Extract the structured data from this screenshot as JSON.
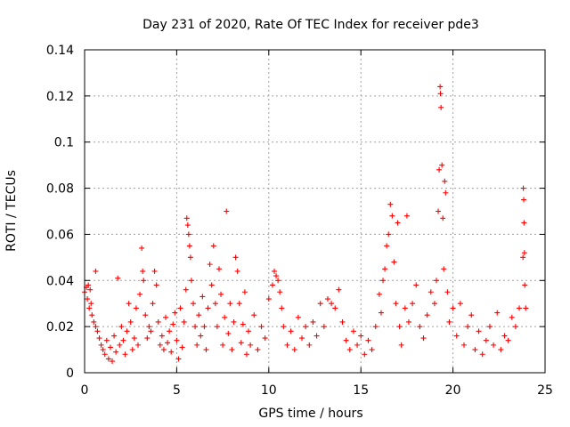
{
  "chart_data": {
    "type": "scatter",
    "title": "Day 231 of 2020, Rate Of TEC Index for receiver pde3",
    "xlabel": "GPS time / hours",
    "ylabel": "ROTI / TECUs",
    "xlim": [
      0,
      25
    ],
    "ylim": [
      0,
      0.14
    ],
    "x_ticks": [
      0,
      5,
      10,
      15,
      20,
      25
    ],
    "x_tick_labels": [
      "0",
      "5",
      "10",
      "15",
      "20",
      "25"
    ],
    "y_ticks": [
      0,
      0.02,
      0.04,
      0.06,
      0.08,
      0.1,
      0.12,
      0.14
    ],
    "y_tick_labels": [
      "0",
      "0.02",
      "0.04",
      "0.06",
      "0.08",
      "0.1",
      "0.12",
      "0.14"
    ],
    "grid": true,
    "marker": "plus",
    "color": "#ff0000",
    "series": [
      {
        "points": [
          [
            0.0,
            0.035
          ],
          [
            0.1,
            0.037
          ],
          [
            0.15,
            0.032
          ],
          [
            0.2,
            0.038
          ],
          [
            0.25,
            0.028
          ],
          [
            0.3,
            0.036
          ],
          [
            0.35,
            0.03
          ],
          [
            0.4,
            0.025
          ],
          [
            0.5,
            0.022
          ],
          [
            0.6,
            0.044
          ],
          [
            0.6,
            0.02
          ],
          [
            0.7,
            0.018
          ],
          [
            0.8,
            0.015
          ],
          [
            0.9,
            0.012
          ],
          [
            1.0,
            0.01
          ],
          [
            1.1,
            0.008
          ],
          [
            1.2,
            0.014
          ],
          [
            1.3,
            0.006
          ],
          [
            1.4,
            0.011
          ],
          [
            1.5,
            0.005
          ],
          [
            1.6,
            0.016
          ],
          [
            1.7,
            0.009
          ],
          [
            1.8,
            0.041
          ],
          [
            1.9,
            0.012
          ],
          [
            2.0,
            0.02
          ],
          [
            2.1,
            0.014
          ],
          [
            2.2,
            0.008
          ],
          [
            2.3,
            0.018
          ],
          [
            2.4,
            0.03
          ],
          [
            2.5,
            0.022
          ],
          [
            2.6,
            0.01
          ],
          [
            2.7,
            0.015
          ],
          [
            2.8,
            0.028
          ],
          [
            2.9,
            0.012
          ],
          [
            3.0,
            0.034
          ],
          [
            3.1,
            0.054
          ],
          [
            3.15,
            0.044
          ],
          [
            3.2,
            0.04
          ],
          [
            3.3,
            0.025
          ],
          [
            3.4,
            0.015
          ],
          [
            3.5,
            0.02
          ],
          [
            3.6,
            0.018
          ],
          [
            3.7,
            0.03
          ],
          [
            3.8,
            0.044
          ],
          [
            3.9,
            0.038
          ],
          [
            4.0,
            0.022
          ],
          [
            4.1,
            0.012
          ],
          [
            4.2,
            0.016
          ],
          [
            4.3,
            0.01
          ],
          [
            4.4,
            0.024
          ],
          [
            4.5,
            0.013
          ],
          [
            4.6,
            0.018
          ],
          [
            4.7,
            0.009
          ],
          [
            4.8,
            0.021
          ],
          [
            4.9,
            0.026
          ],
          [
            5.0,
            0.014
          ],
          [
            5.1,
            0.006
          ],
          [
            5.2,
            0.028
          ],
          [
            5.3,
            0.011
          ],
          [
            5.4,
            0.022
          ],
          [
            5.5,
            0.036
          ],
          [
            5.55,
            0.067
          ],
          [
            5.6,
            0.064
          ],
          [
            5.65,
            0.06
          ],
          [
            5.7,
            0.055
          ],
          [
            5.75,
            0.05
          ],
          [
            5.8,
            0.04
          ],
          [
            5.9,
            0.03
          ],
          [
            6.0,
            0.02
          ],
          [
            6.1,
            0.012
          ],
          [
            6.2,
            0.025
          ],
          [
            6.3,
            0.016
          ],
          [
            6.4,
            0.033
          ],
          [
            6.5,
            0.02
          ],
          [
            6.6,
            0.01
          ],
          [
            6.7,
            0.028
          ],
          [
            6.8,
            0.047
          ],
          [
            6.9,
            0.038
          ],
          [
            7.0,
            0.055
          ],
          [
            7.1,
            0.03
          ],
          [
            7.2,
            0.02
          ],
          [
            7.3,
            0.045
          ],
          [
            7.4,
            0.034
          ],
          [
            7.5,
            0.012
          ],
          [
            7.6,
            0.024
          ],
          [
            7.7,
            0.07
          ],
          [
            7.8,
            0.017
          ],
          [
            7.9,
            0.03
          ],
          [
            8.0,
            0.01
          ],
          [
            8.1,
            0.022
          ],
          [
            8.2,
            0.05
          ],
          [
            8.3,
            0.044
          ],
          [
            8.4,
            0.03
          ],
          [
            8.5,
            0.013
          ],
          [
            8.6,
            0.021
          ],
          [
            8.7,
            0.035
          ],
          [
            8.8,
            0.008
          ],
          [
            8.9,
            0.018
          ],
          [
            9.0,
            0.012
          ],
          [
            9.2,
            0.025
          ],
          [
            9.4,
            0.01
          ],
          [
            9.6,
            0.02
          ],
          [
            9.8,
            0.015
          ],
          [
            10.0,
            0.032
          ],
          [
            10.2,
            0.038
          ],
          [
            10.3,
            0.044
          ],
          [
            10.4,
            0.042
          ],
          [
            10.5,
            0.04
          ],
          [
            10.6,
            0.035
          ],
          [
            10.7,
            0.028
          ],
          [
            10.8,
            0.02
          ],
          [
            11.0,
            0.012
          ],
          [
            11.2,
            0.018
          ],
          [
            11.4,
            0.01
          ],
          [
            11.6,
            0.024
          ],
          [
            11.8,
            0.015
          ],
          [
            12.0,
            0.02
          ],
          [
            12.2,
            0.012
          ],
          [
            12.4,
            0.022
          ],
          [
            12.6,
            0.016
          ],
          [
            12.8,
            0.03
          ],
          [
            13.0,
            0.02
          ],
          [
            13.2,
            0.032
          ],
          [
            13.4,
            0.03
          ],
          [
            13.6,
            0.028
          ],
          [
            13.8,
            0.036
          ],
          [
            14.0,
            0.022
          ],
          [
            14.2,
            0.014
          ],
          [
            14.4,
            0.01
          ],
          [
            14.6,
            0.018
          ],
          [
            14.8,
            0.012
          ],
          [
            15.0,
            0.016
          ],
          [
            15.2,
            0.008
          ],
          [
            15.4,
            0.014
          ],
          [
            15.6,
            0.01
          ],
          [
            15.8,
            0.02
          ],
          [
            16.0,
            0.034
          ],
          [
            16.1,
            0.026
          ],
          [
            16.2,
            0.04
          ],
          [
            16.3,
            0.045
          ],
          [
            16.4,
            0.055
          ],
          [
            16.5,
            0.06
          ],
          [
            16.6,
            0.073
          ],
          [
            16.7,
            0.068
          ],
          [
            16.8,
            0.048
          ],
          [
            16.9,
            0.03
          ],
          [
            17.0,
            0.065
          ],
          [
            17.1,
            0.02
          ],
          [
            17.2,
            0.012
          ],
          [
            17.4,
            0.028
          ],
          [
            17.5,
            0.068
          ],
          [
            17.6,
            0.022
          ],
          [
            17.8,
            0.03
          ],
          [
            18.0,
            0.038
          ],
          [
            18.2,
            0.02
          ],
          [
            18.4,
            0.015
          ],
          [
            18.6,
            0.025
          ],
          [
            18.8,
            0.035
          ],
          [
            19.0,
            0.03
          ],
          [
            19.1,
            0.04
          ],
          [
            19.2,
            0.07
          ],
          [
            19.25,
            0.088
          ],
          [
            19.3,
            0.124
          ],
          [
            19.32,
            0.121
          ],
          [
            19.35,
            0.115
          ],
          [
            19.4,
            0.09
          ],
          [
            19.45,
            0.067
          ],
          [
            19.5,
            0.045
          ],
          [
            19.55,
            0.083
          ],
          [
            19.6,
            0.078
          ],
          [
            19.7,
            0.035
          ],
          [
            19.8,
            0.022
          ],
          [
            20.0,
            0.028
          ],
          [
            20.2,
            0.016
          ],
          [
            20.4,
            0.03
          ],
          [
            20.6,
            0.012
          ],
          [
            20.8,
            0.02
          ],
          [
            21.0,
            0.025
          ],
          [
            21.2,
            0.01
          ],
          [
            21.4,
            0.018
          ],
          [
            21.6,
            0.008
          ],
          [
            21.8,
            0.014
          ],
          [
            22.0,
            0.02
          ],
          [
            22.2,
            0.012
          ],
          [
            22.4,
            0.026
          ],
          [
            22.6,
            0.01
          ],
          [
            22.8,
            0.016
          ],
          [
            23.0,
            0.014
          ],
          [
            23.2,
            0.024
          ],
          [
            23.4,
            0.02
          ],
          [
            23.6,
            0.028
          ],
          [
            23.8,
            0.05
          ],
          [
            23.82,
            0.08
          ],
          [
            23.84,
            0.075
          ],
          [
            23.86,
            0.065
          ],
          [
            23.88,
            0.052
          ],
          [
            23.9,
            0.038
          ],
          [
            23.95,
            0.028
          ]
        ]
      }
    ]
  }
}
